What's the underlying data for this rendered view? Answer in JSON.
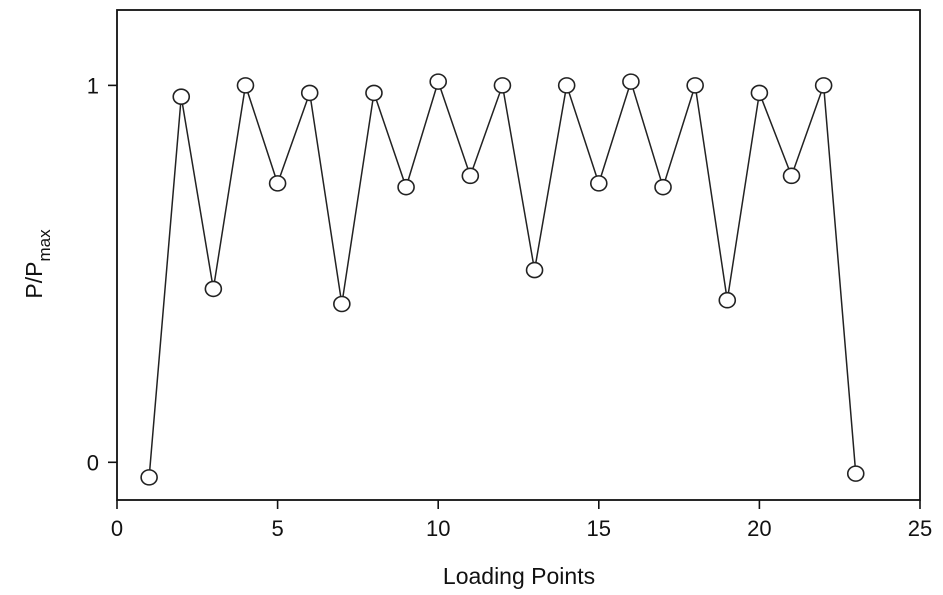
{
  "chart_data": {
    "type": "line",
    "title": "",
    "xlabel": "Loading Points",
    "ylabel": {
      "base": "P/P",
      "subscript": "max"
    },
    "xlim": [
      0,
      25
    ],
    "ylim": [
      -0.1,
      1.2
    ],
    "xticks": [
      0,
      5,
      10,
      15,
      20,
      25
    ],
    "yticks": [
      0,
      1
    ],
    "grid": false,
    "legend": "none",
    "marker": "open-circle",
    "series": [
      {
        "x": [
          1,
          2,
          3,
          4,
          5,
          6,
          7,
          8,
          9,
          10,
          11,
          12,
          13,
          14,
          15,
          16,
          17,
          18,
          19,
          20,
          21,
          22,
          23
        ],
        "y": [
          -0.04,
          0.97,
          0.46,
          1.0,
          0.74,
          0.98,
          0.42,
          0.98,
          0.73,
          1.01,
          0.76,
          1.0,
          0.51,
          1.0,
          0.74,
          1.01,
          0.73,
          1.0,
          0.43,
          0.98,
          0.76,
          1.0,
          -0.03
        ]
      }
    ],
    "colors": {
      "line": "#222222",
      "marker_fill": "#ffffff",
      "axis": "#111111"
    }
  }
}
